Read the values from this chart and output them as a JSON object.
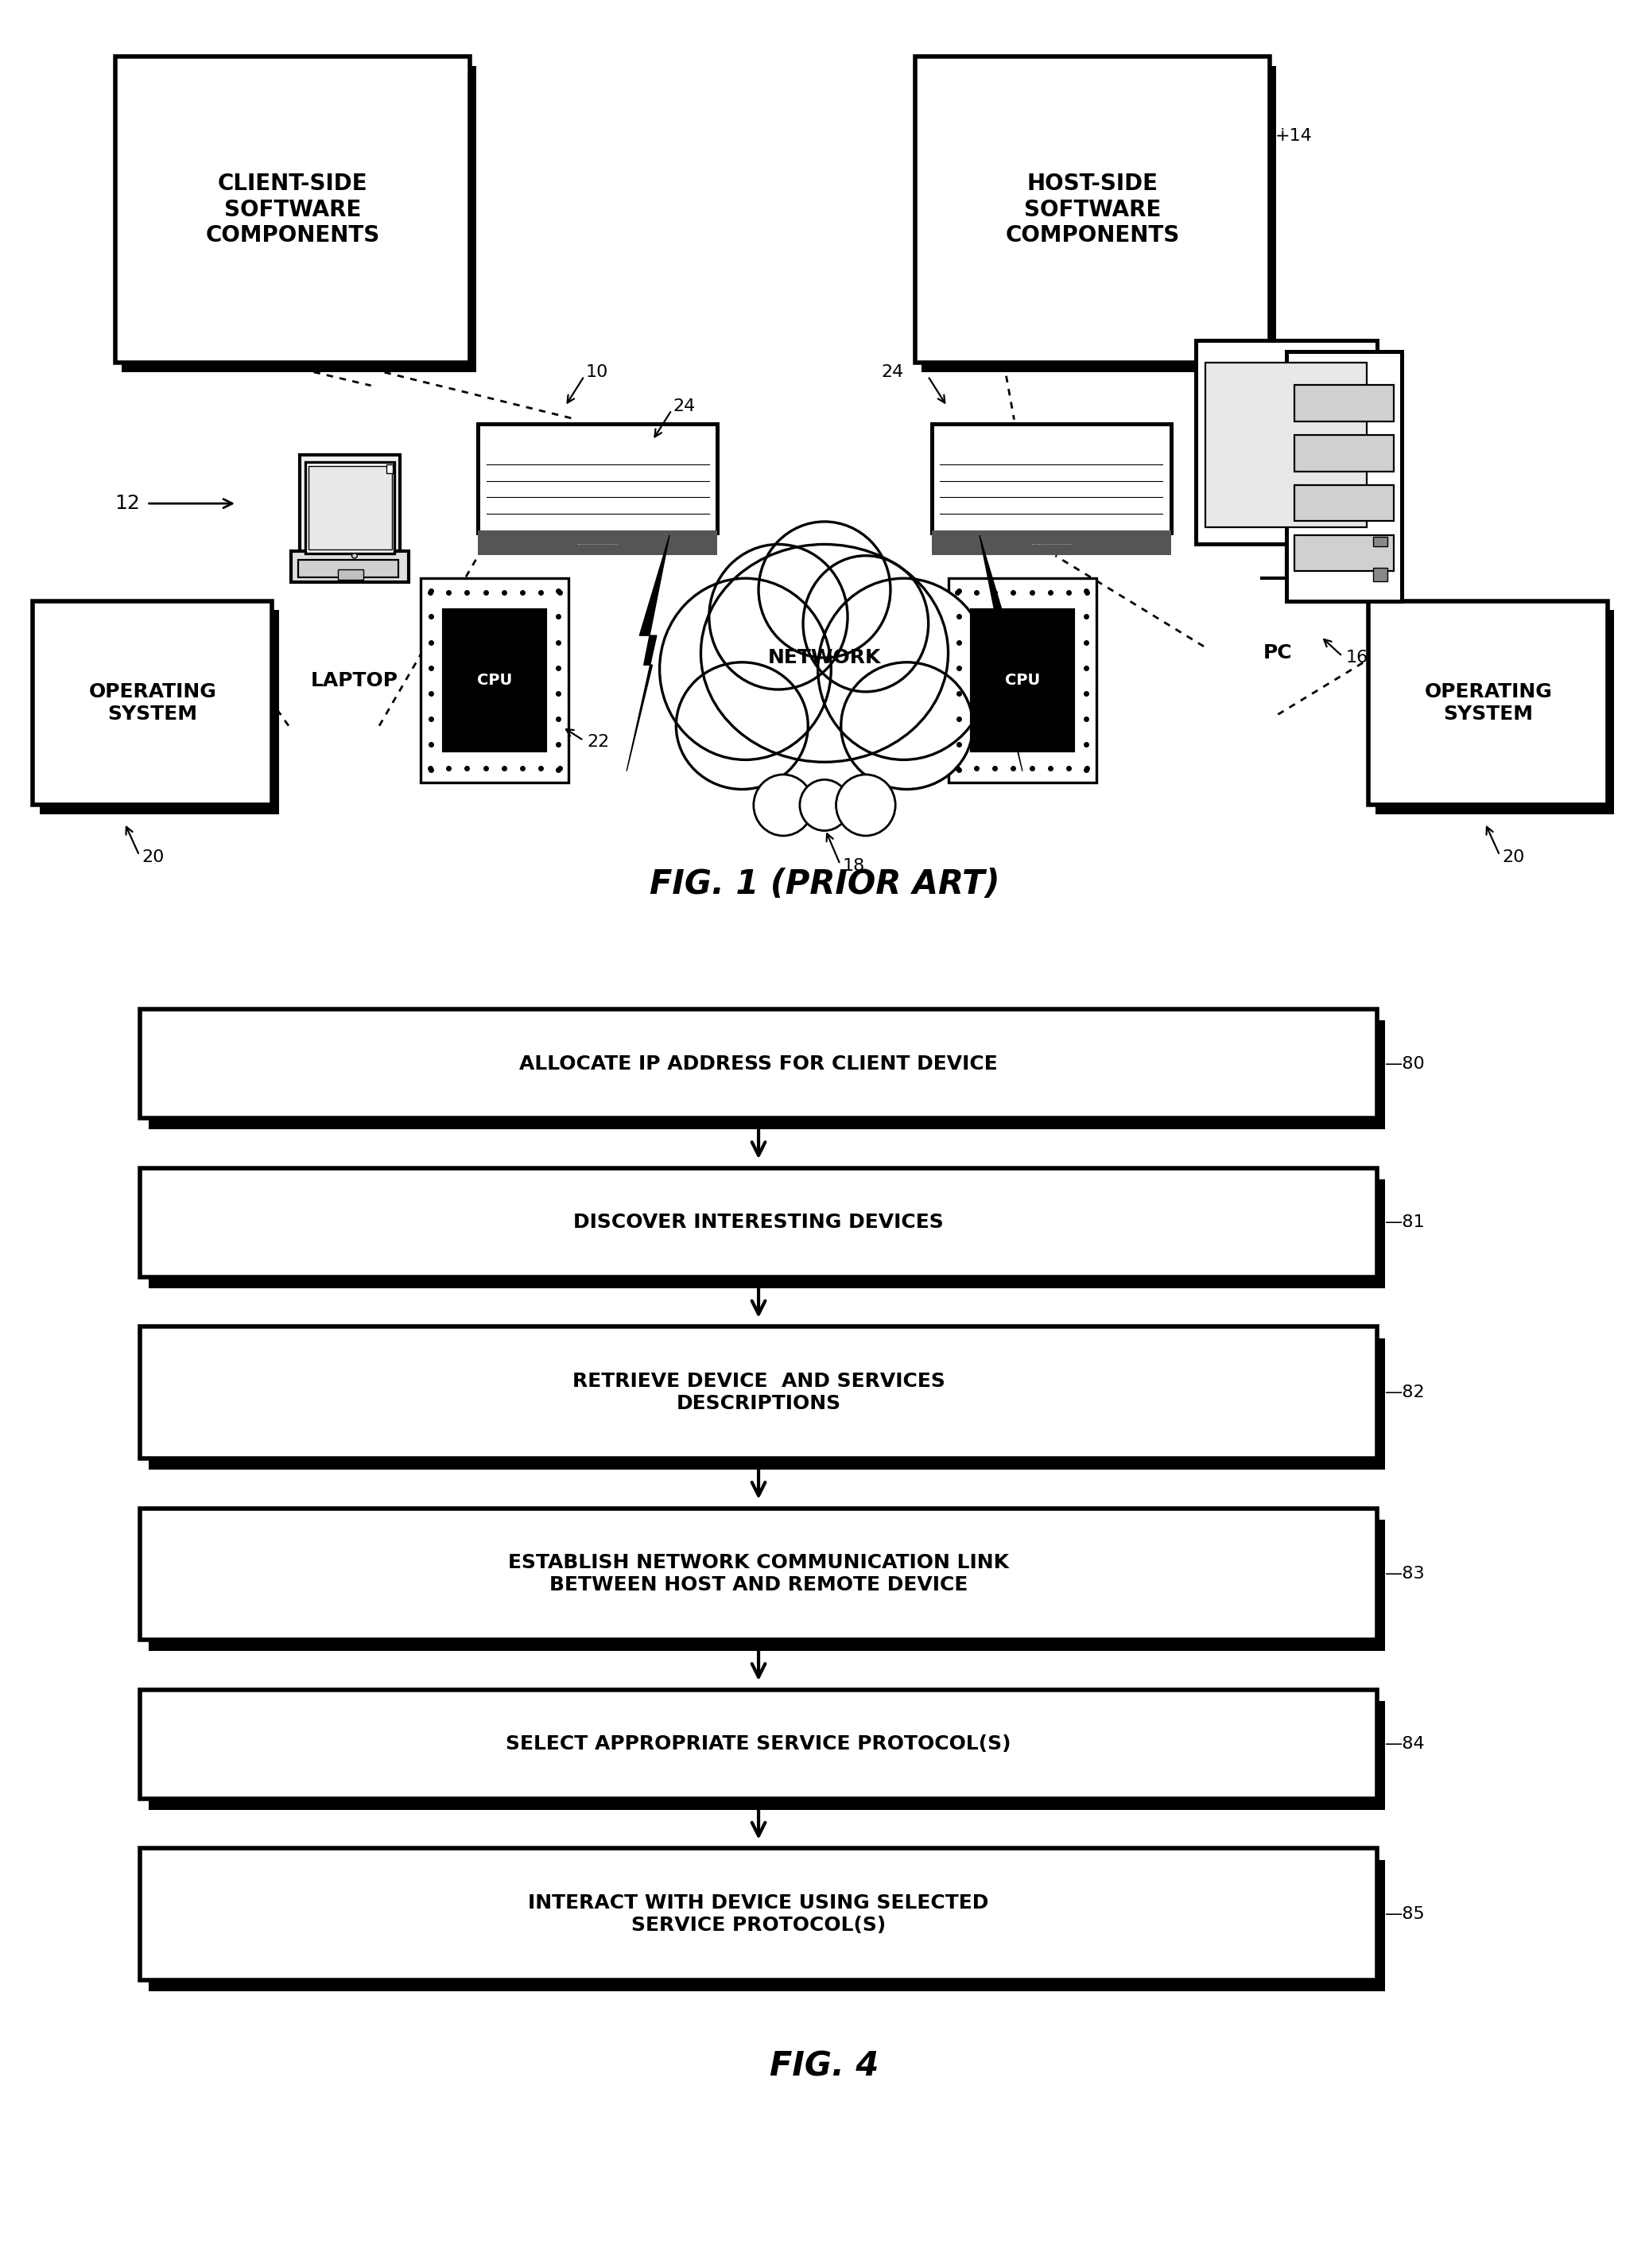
{
  "bg_color": "#ffffff",
  "fig_width": 20.74,
  "fig_height": 28.52,
  "fig1_caption": "FIG. 1 (PRIOR ART)",
  "fig4_caption": "FIG. 4",
  "flowchart_boxes": [
    {
      "label": "ALLOCATE IP ADDRESS FOR CLIENT DEVICE",
      "ref": "80",
      "lines": 1
    },
    {
      "label": "DISCOVER INTERESTING DEVICES",
      "ref": "81",
      "lines": 1
    },
    {
      "label": "RETRIEVE DEVICE  AND SERVICES\nDESCRIPTIONS",
      "ref": "82",
      "lines": 2
    },
    {
      "label": "ESTABLISH NETWORK COMMUNICATION LINK\nBETWEEN HOST AND REMOTE DEVICE",
      "ref": "83",
      "lines": 2
    },
    {
      "label": "SELECT APPROPRIATE SERVICE PROTOCOL(S)",
      "ref": "84",
      "lines": 1
    },
    {
      "label": "INTERACT WITH DEVICE USING SELECTED\nSERVICE PROTOCOL(S)",
      "ref": "85",
      "lines": 2
    }
  ],
  "labels": {
    "client_sw": "CLIENT-SIDE\nSOFTWARE\nCOMPONENTS",
    "host_sw": "HOST-SIDE\nSOFTWARE\nCOMPONENTS",
    "laptop": "LAPTOP",
    "pc": "PC",
    "network": "NETWORK",
    "operating_system": "OPERATING\nSYSTEM",
    "cpu": "CPU"
  },
  "refs": {
    "r10": "10",
    "r12": "12",
    "r14": "14",
    "r16": "16",
    "r18": "18",
    "r20": "20",
    "r22": "22",
    "r24": "24"
  }
}
